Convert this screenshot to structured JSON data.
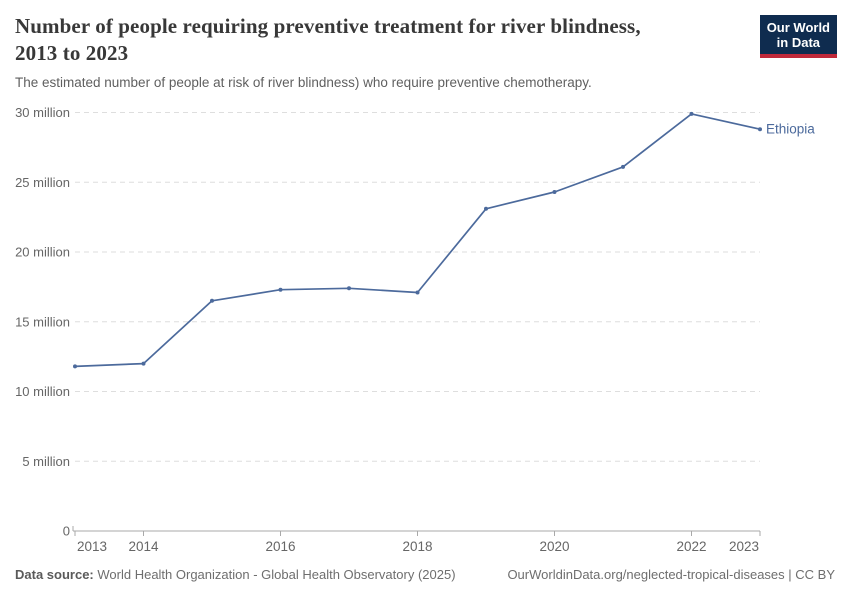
{
  "header": {
    "title_line1": "Number of people requiring preventive treatment for river blindness,",
    "title_line2": "2013 to 2023",
    "subtitle": "The estimated number of people at risk of river blindness) who require preventive chemotherapy.",
    "logo": {
      "line1": "Our World",
      "line2": "in Data",
      "bg_color": "#0f2c4f",
      "accent_color": "#c0293a"
    }
  },
  "chart_data": {
    "type": "line",
    "title": "Number of people requiring preventive treatment for river blindness, 2013 to 2023",
    "x": [
      2013,
      2014,
      2015,
      2016,
      2017,
      2018,
      2019,
      2020,
      2021,
      2022,
      2023
    ],
    "series": [
      {
        "name": "Ethiopia",
        "color": "#4c6a9c",
        "values_millions": [
          11.8,
          12.0,
          16.5,
          17.3,
          17.4,
          17.1,
          23.1,
          24.3,
          26.1,
          29.9,
          28.8
        ]
      }
    ],
    "unit": "million people",
    "xlim": [
      2013,
      2023
    ],
    "ylim": [
      0,
      30
    ],
    "x_ticks": [
      2013,
      2014,
      2016,
      2018,
      2020,
      2022,
      2023
    ],
    "y_ticks": [
      0,
      5,
      10,
      15,
      20,
      25,
      30
    ],
    "y_tick_labels": [
      "0",
      "5 million",
      "10 million",
      "15 million",
      "20 million",
      "25 million",
      "30 million"
    ],
    "grid": "horizontal-dashed",
    "grid_color": "#dedede",
    "axis_color": "#a9a9a9",
    "tick_label_color": "#666666",
    "legend_position": "end-of-line-label"
  },
  "footer": {
    "source_label": "Data source:",
    "source_value": "World Health Organization - Global Health Observatory (2025)",
    "attribution": "OurWorldinData.org/neglected-tropical-diseases | CC BY"
  }
}
